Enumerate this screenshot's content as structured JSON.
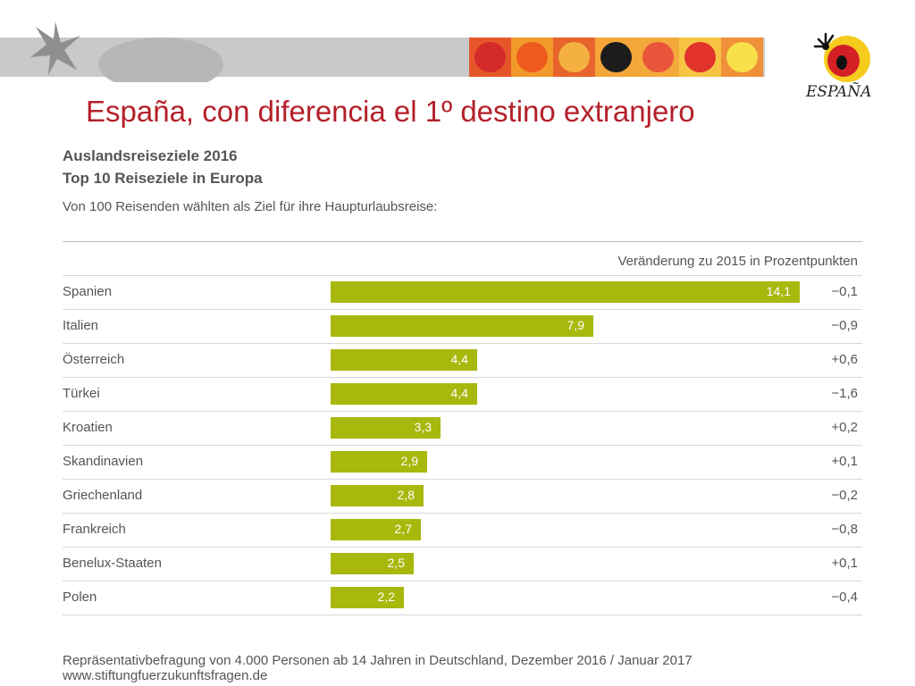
{
  "slide": {
    "title": "España, con diferencia el 1º destino extranjero",
    "logo_text": "ESPAÑA"
  },
  "banner": {
    "tiles": [
      {
        "icon": "red-circle-tile",
        "bg": "#e5572a",
        "fg": "#d42a2a"
      },
      {
        "icon": "orange-sun-tile",
        "bg": "#f19a2a",
        "fg": "#ee5a1e"
      },
      {
        "icon": "sun-face-tile",
        "bg": "#e8642c",
        "fg": "#f4b142"
      },
      {
        "icon": "ladybug-tile",
        "bg": "#f3a53a",
        "fg": "#1c1c1c"
      },
      {
        "icon": "orange-shapes-tile",
        "bg": "#f2a83b",
        "fg": "#e8553a"
      },
      {
        "icon": "red-sun-tile",
        "bg": "#f6c343",
        "fg": "#e2322c"
      },
      {
        "icon": "yellow-sun-tile",
        "bg": "#f0903a",
        "fg": "#f7e04a"
      }
    ]
  },
  "chart_data": {
    "type": "bar",
    "orientation": "horizontal",
    "title": "Auslandsreiseziele 2016",
    "subtitle": "Top 10 Reiseziele in Europa",
    "description": "Von 100 Reisenden wählten als Ziel für ihre Haupturlaubsreise:",
    "change_header": "Veränderung zu 2015 in Prozentpunkten",
    "categories": [
      "Spanien",
      "Italien",
      "Österreich",
      "Türkei",
      "Kroatien",
      "Skandinavien",
      "Griechenland",
      "Frankreich",
      "Benelux-Staaten",
      "Polen"
    ],
    "values": [
      14.1,
      7.9,
      4.4,
      4.4,
      3.3,
      2.9,
      2.8,
      2.7,
      2.5,
      2.2
    ],
    "value_labels": [
      "14,1",
      "7,9",
      "4,4",
      "4,4",
      "3,3",
      "2,9",
      "2,8",
      "2,7",
      "2,5",
      "2,2"
    ],
    "changes": [
      "−0,1",
      "−0,9",
      "+0,6",
      "−1,6",
      "+0,2",
      "+0,1",
      "−0,2",
      "−0,8",
      "+0,1",
      "−0,4"
    ],
    "xlim": [
      0,
      14.1
    ],
    "bar_color": "#a8b80d",
    "grid": false
  },
  "footer": {
    "source": "Repräsentativbefragung von 4.000 Personen ab 14 Jahren in Deutschland, Dezember 2016 / Januar 2017",
    "url": "www.stiftungfuerzukunftsfragen.de"
  }
}
